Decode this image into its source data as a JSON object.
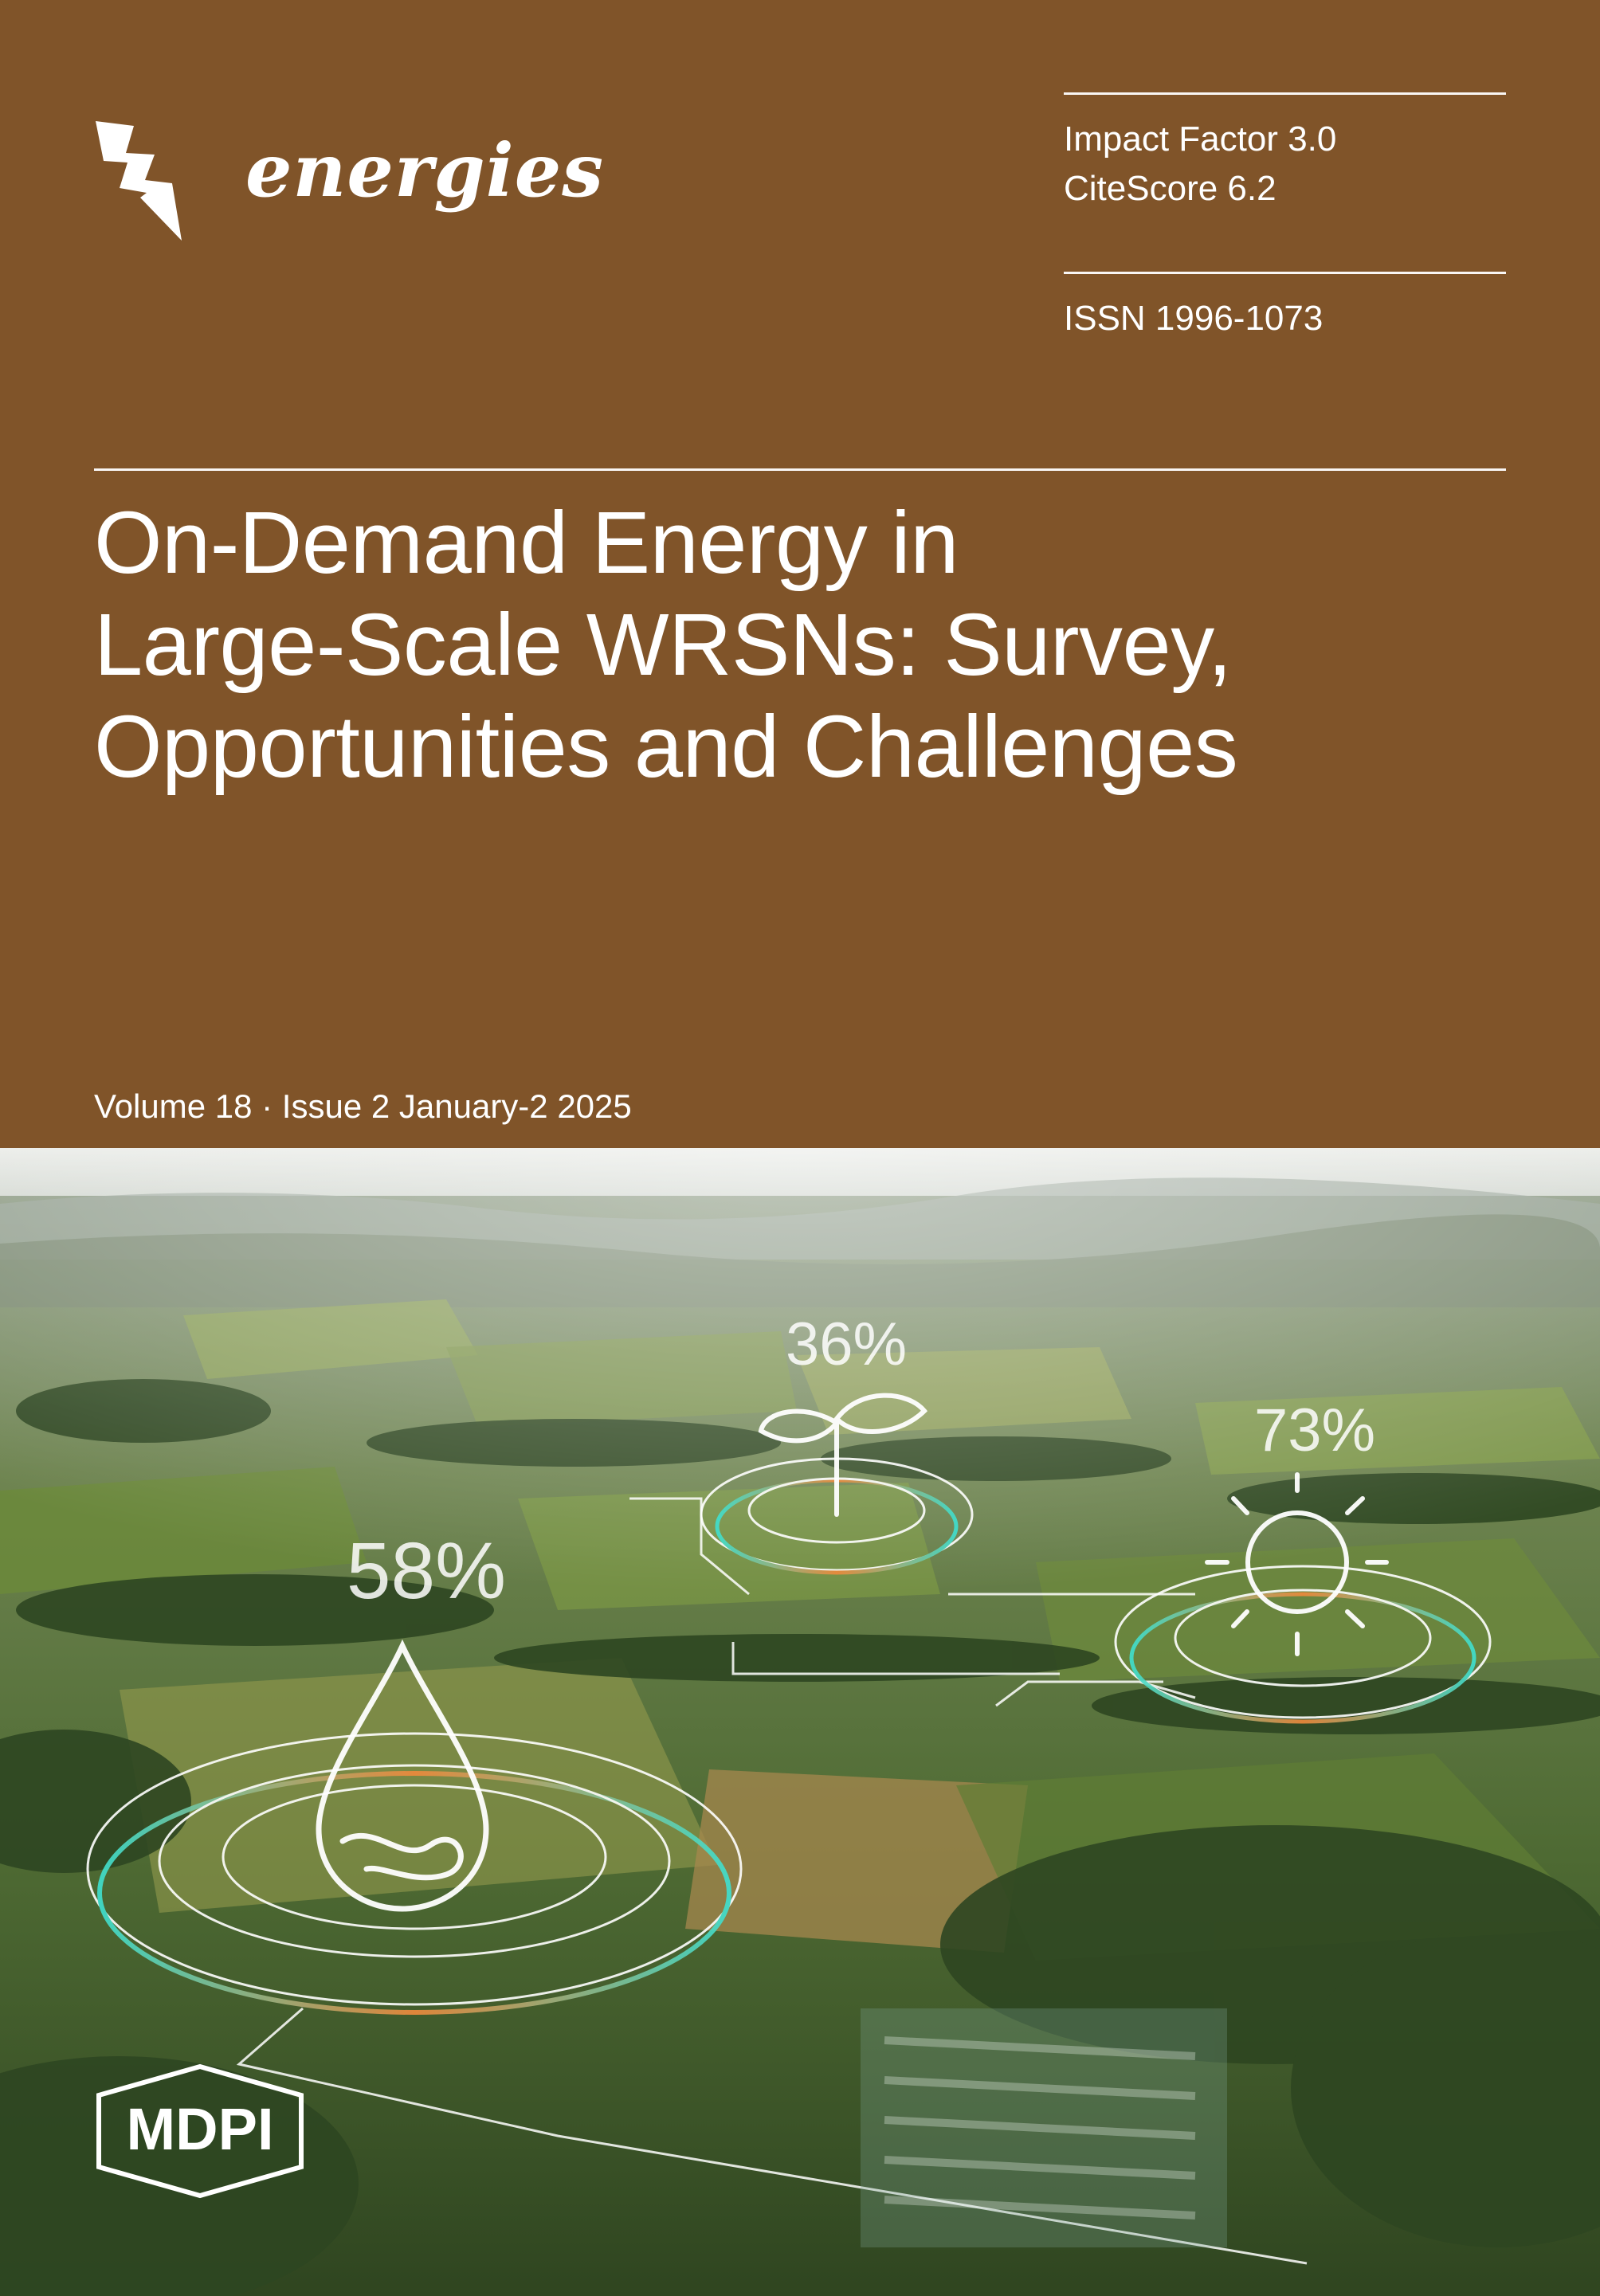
{
  "journal": {
    "name": "energies",
    "publisher": "MDPI"
  },
  "metrics": {
    "impact_factor": "Impact Factor 3.0",
    "citescore": "CiteScore 6.2",
    "issn": "ISSN 1996-1073"
  },
  "article": {
    "title_lines": [
      "On-Demand Energy in",
      "Large-Scale WRSNs: Survey,",
      "Opportunities and Challenges"
    ]
  },
  "issue": {
    "label": "Volume 18 · Issue 2 January-2 2025"
  },
  "overlay": {
    "plant_percent": "36%",
    "sun_percent": "73%",
    "water_percent": "58%"
  },
  "icons": {
    "journal_logo": "lightning-bolt-icon",
    "plant": "sprout-icon",
    "sun": "sun-icon",
    "water": "water-drop-icon"
  },
  "colors": {
    "cover_brown": "#805429",
    "hud_cyan": "#3fe0d0",
    "hud_orange": "#f08a3c"
  }
}
